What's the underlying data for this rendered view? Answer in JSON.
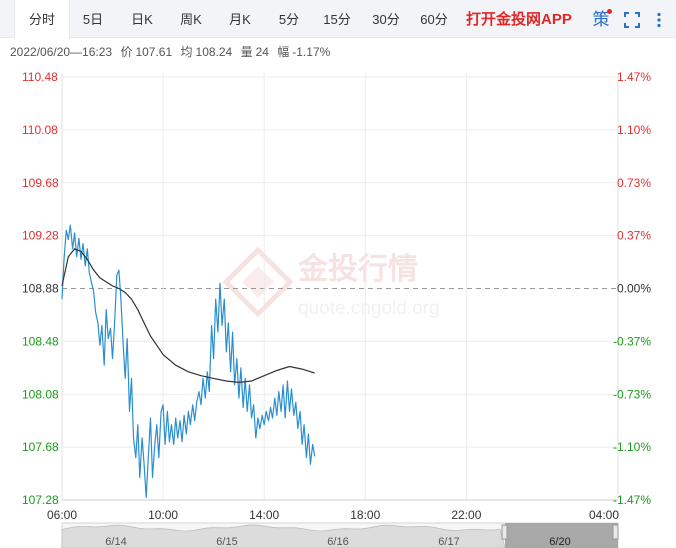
{
  "tabs": [
    {
      "label": "分时",
      "active": true
    },
    {
      "label": "5日",
      "active": false
    },
    {
      "label": "日K",
      "active": false
    },
    {
      "label": "周K",
      "active": false
    },
    {
      "label": "月K",
      "active": false
    },
    {
      "label": "5分",
      "active": false
    },
    {
      "label": "15分",
      "active": false
    },
    {
      "label": "30分",
      "active": false
    },
    {
      "label": "60分",
      "active": false
    }
  ],
  "promo_label": "打开金投网APP",
  "tools": {
    "strategy_label": "策",
    "fullscreen_icon": "fullscreen-icon",
    "more_icon": "more-icon"
  },
  "info": {
    "datetime": "2022/06/20—16:23",
    "price_label": "价",
    "price": "107.61",
    "avg_label": "均",
    "avg": "108.24",
    "volume_label": "量",
    "volume": "24",
    "change_label": "幅",
    "change": "-1.17%"
  },
  "watermark": {
    "cn": "金投行情",
    "url": "quote.cngold.org"
  },
  "colors": {
    "up": "#e03030",
    "down": "#1a9b1a",
    "neutral": "#333333",
    "price_line": "#2a8fd0",
    "avg_line": "#333333",
    "grid": "#ececec",
    "navigator_fill": "#dcdcdc",
    "navigator_window": "#a8a8a8"
  },
  "chart_data": {
    "type": "line",
    "title": "",
    "xlabel": "",
    "ylabel": "",
    "prev_close": 108.88,
    "ylim": [
      107.28,
      110.48
    ],
    "y_ticks": [
      "110.48",
      "110.08",
      "109.68",
      "109.28",
      "108.88",
      "108.48",
      "108.08",
      "107.68",
      "107.28"
    ],
    "y_ticks_pct": [
      "1.47%",
      "1.10%",
      "0.73%",
      "0.37%",
      "0.00%",
      "-0.37%",
      "-0.73%",
      "-1.10%",
      "-1.47%"
    ],
    "x_ticks": [
      "06:00",
      "10:00",
      "14:00",
      "18:00",
      "22:00",
      "04:00"
    ],
    "x_range_hours": [
      6,
      28
    ],
    "grid": true,
    "series": [
      {
        "key": "price",
        "x_hours": [
          6.0,
          6.08,
          6.17,
          6.25,
          6.33,
          6.42,
          6.5,
          6.58,
          6.67,
          6.75,
          6.83,
          6.92,
          7.0,
          7.08,
          7.17,
          7.25,
          7.33,
          7.42,
          7.5,
          7.58,
          7.67,
          7.75,
          7.83,
          7.92,
          8.0,
          8.08,
          8.17,
          8.25,
          8.33,
          8.42,
          8.5,
          8.58,
          8.67,
          8.75,
          8.83,
          8.92,
          9.0,
          9.08,
          9.17,
          9.25,
          9.33,
          9.42,
          9.5,
          9.58,
          9.67,
          9.75,
          9.83,
          9.92,
          10.0,
          10.08,
          10.17,
          10.25,
          10.33,
          10.42,
          10.5,
          10.58,
          10.67,
          10.75,
          10.83,
          10.92,
          11.0,
          11.08,
          11.17,
          11.25,
          11.33,
          11.42,
          11.5,
          11.58,
          11.67,
          11.75,
          11.83,
          11.92,
          12.0,
          12.08,
          12.17,
          12.25,
          12.33,
          12.42,
          12.5,
          12.58,
          12.67,
          12.75,
          12.83,
          12.92,
          13.0,
          13.08,
          13.17,
          13.25,
          13.33,
          13.42,
          13.5,
          13.58,
          13.67,
          13.75,
          13.83,
          13.92,
          14.0,
          14.08,
          14.17,
          14.25,
          14.33,
          14.42,
          14.5,
          14.58,
          14.67,
          14.75,
          14.83,
          14.92,
          15.0,
          15.08,
          15.17,
          15.25,
          15.33,
          15.42,
          15.5,
          15.58,
          15.67,
          15.75,
          15.83,
          15.92,
          16.0
        ],
        "values": [
          108.8,
          109.1,
          109.32,
          109.25,
          109.36,
          109.18,
          109.3,
          109.12,
          109.26,
          109.1,
          109.22,
          109.05,
          109.18,
          109.0,
          108.92,
          108.86,
          108.7,
          108.62,
          108.45,
          108.6,
          108.3,
          108.72,
          108.5,
          108.58,
          108.35,
          108.62,
          108.98,
          109.02,
          108.8,
          108.45,
          108.2,
          108.5,
          107.95,
          108.2,
          107.75,
          107.6,
          107.85,
          107.45,
          107.75,
          107.55,
          107.3,
          107.62,
          107.9,
          107.45,
          107.7,
          107.85,
          107.6,
          107.95,
          108.0,
          107.7,
          107.95,
          107.72,
          107.85,
          107.7,
          107.9,
          107.75,
          107.88,
          107.72,
          107.92,
          107.78,
          107.95,
          107.85,
          108.0,
          107.88,
          108.02,
          108.1,
          108.0,
          108.2,
          108.05,
          108.25,
          108.1,
          108.6,
          108.35,
          108.8,
          108.55,
          108.92,
          108.6,
          108.8,
          108.4,
          108.62,
          108.25,
          108.55,
          108.15,
          108.35,
          108.05,
          108.28,
          107.98,
          108.2,
          107.95,
          108.15,
          107.9,
          108.0,
          107.75,
          107.9,
          107.82,
          107.92,
          107.85,
          107.95,
          107.88,
          107.98,
          107.9,
          108.05,
          107.92,
          108.1,
          107.95,
          108.15,
          107.9,
          108.18,
          107.95,
          108.12,
          107.92,
          108.02,
          107.82,
          107.95,
          107.7,
          107.85,
          107.6,
          107.78,
          107.55,
          107.7,
          107.61
        ]
      },
      {
        "key": "avg",
        "x_hours": [
          6.0,
          6.25,
          6.5,
          6.75,
          7.0,
          7.25,
          7.5,
          7.75,
          8.0,
          8.25,
          8.5,
          8.75,
          9.0,
          9.25,
          9.5,
          9.75,
          10.0,
          10.5,
          11.0,
          11.5,
          12.0,
          12.5,
          13.0,
          13.5,
          14.0,
          14.5,
          15.0,
          15.5,
          16.0
        ],
        "values": [
          108.9,
          109.12,
          109.18,
          109.16,
          109.1,
          109.02,
          108.96,
          108.93,
          108.9,
          108.88,
          108.85,
          108.8,
          108.72,
          108.62,
          108.52,
          108.45,
          108.38,
          108.3,
          108.25,
          108.22,
          108.2,
          108.18,
          108.17,
          108.18,
          108.22,
          108.26,
          108.29,
          108.27,
          108.24
        ]
      }
    ],
    "navigator": {
      "labels": [
        "6/14",
        "6/15",
        "6/16",
        "6/17",
        "6/20"
      ]
    }
  }
}
